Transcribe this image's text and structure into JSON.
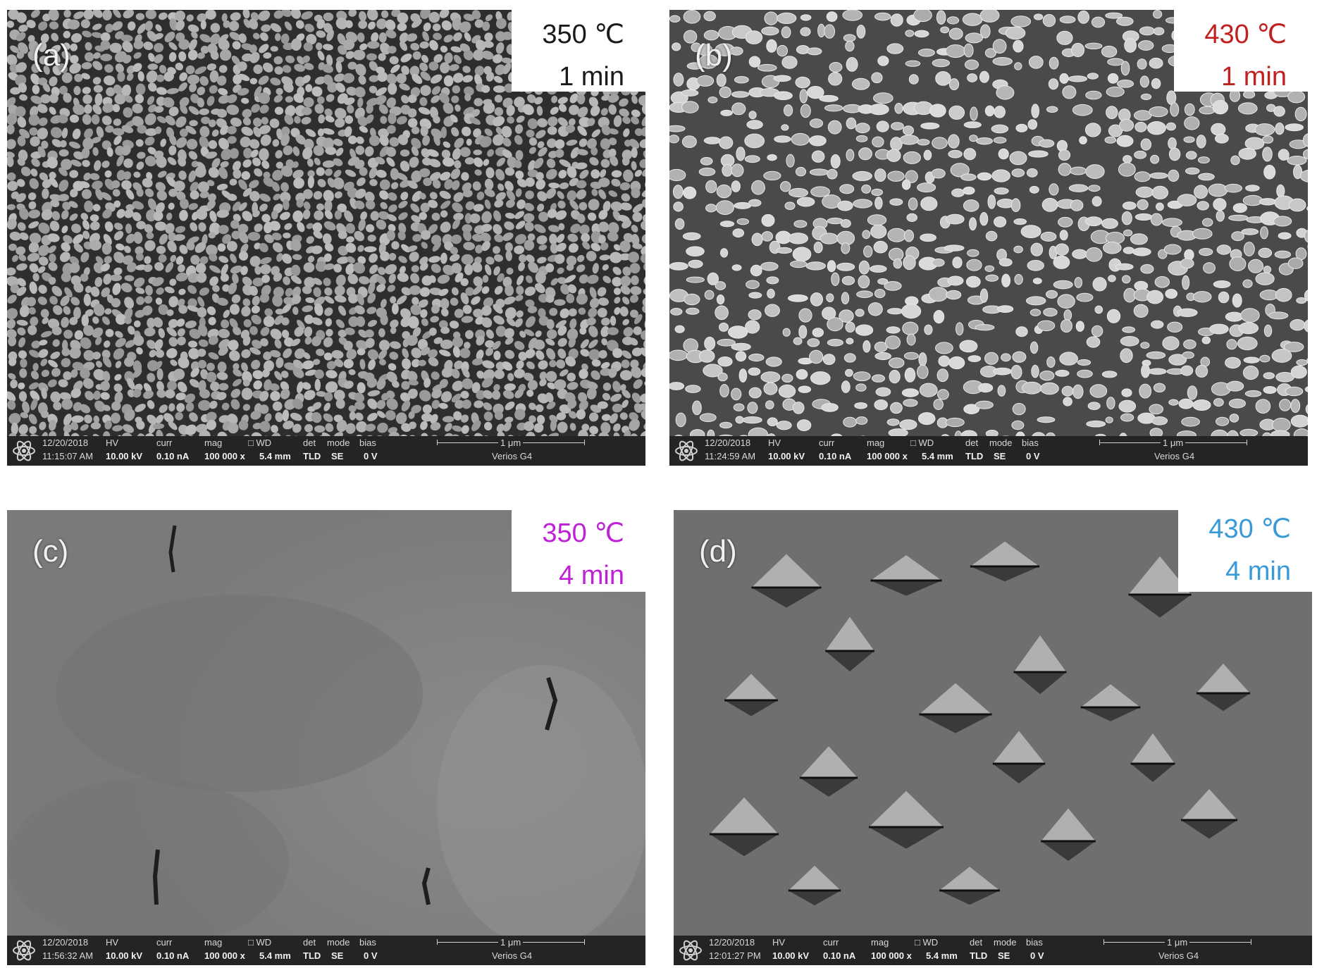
{
  "panels": [
    {
      "label": "(a)",
      "temperature": "350 ℃",
      "time": "1 min",
      "text_color": "#1a1a1a",
      "texture": "dense-grains",
      "info": {
        "date": "12/20/2018",
        "time": "11:15:07 AM",
        "hv_label": "HV",
        "hv": "10.00 kV",
        "curr_label": "curr",
        "curr": "0.10 nA",
        "mag_label": "mag",
        "mag": "100 000 x",
        "wd_label": "□ WD",
        "wd": "5.4 mm",
        "det_label": "det",
        "det": "TLD",
        "mode_label": "mode",
        "mode": "SE",
        "bias_label": "bias",
        "bias": "0 V",
        "scale": "1 μm",
        "model": "Verios G4"
      }
    },
    {
      "label": "(b)",
      "temperature": "430 ℃",
      "time": "1 min",
      "text_color": "#c0201f",
      "texture": "islands",
      "info": {
        "date": "12/20/2018",
        "time": "11:24:59 AM",
        "hv_label": "HV",
        "hv": "10.00 kV",
        "curr_label": "curr",
        "curr": "0.10 nA",
        "mag_label": "mag",
        "mag": "100 000 x",
        "wd_label": "□ WD",
        "wd": "5.4 mm",
        "det_label": "det",
        "det": "TLD",
        "mode_label": "mode",
        "mode": "SE",
        "bias_label": "bias",
        "bias": "0 V",
        "scale": "1 μm",
        "model": "Verios G4"
      }
    },
    {
      "label": "(c)",
      "temperature": "350 ℃",
      "time": "4 min",
      "text_color": "#c020d8",
      "texture": "smooth",
      "info": {
        "date": "12/20/2018",
        "time": "11:56:32 AM",
        "hv_label": "HV",
        "hv": "10.00 kV",
        "curr_label": "curr",
        "curr": "0.10 nA",
        "mag_label": "mag",
        "mag": "100 000 x",
        "wd_label": "□ WD",
        "wd": "5.4 mm",
        "det_label": "det",
        "det": "TLD",
        "mode_label": "mode",
        "mode": "SE",
        "bias_label": "bias",
        "bias": "0 V",
        "scale": "1 μm",
        "model": "Verios G4"
      }
    },
    {
      "label": "(d)",
      "temperature": "430 ℃",
      "time": "4 min",
      "text_color": "#3a9ad8",
      "texture": "faceted-pits",
      "info": {
        "date": "12/20/2018",
        "time": "12:01:27 PM",
        "hv_label": "HV",
        "hv": "10.00 kV",
        "curr_label": "curr",
        "curr": "0.10 nA",
        "mag_label": "mag",
        "mag": "100 000 x",
        "wd_label": "□ WD",
        "wd": "5.4 mm",
        "det_label": "det",
        "det": "TLD",
        "mode_label": "mode",
        "mode": "SE",
        "bias_label": "bias",
        "bias": "0 V",
        "scale": "1 μm",
        "model": "Verios G4"
      }
    }
  ]
}
